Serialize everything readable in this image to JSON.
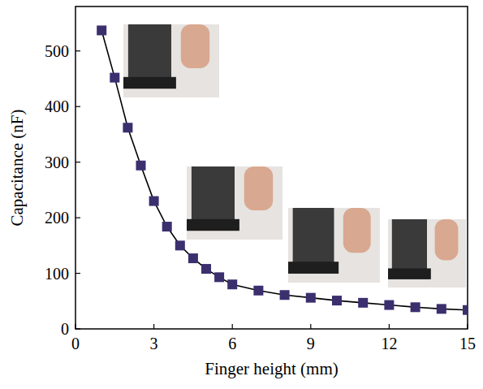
{
  "chart_data": {
    "type": "line",
    "x_label": "Finger height (mm)",
    "y_label": "Capacitance (nF)",
    "x": [
      1,
      1.5,
      2,
      2.5,
      3,
      3.5,
      4,
      4.5,
      5,
      5.5,
      6,
      7,
      8,
      9,
      10,
      11,
      12,
      13,
      14,
      15
    ],
    "series": [
      {
        "name": "Capacitance",
        "color": "#3b2f6e",
        "marker": "square",
        "line_style": "solid",
        "values": [
          537,
          452,
          362,
          294,
          230,
          184,
          150,
          127,
          108,
          93,
          80,
          69,
          61,
          56,
          51,
          47,
          43,
          39,
          36,
          34
        ]
      }
    ],
    "xlim": [
      0,
      15
    ],
    "xticks": [
      0,
      3,
      6,
      9,
      12,
      15
    ],
    "ylim": [
      0,
      580
    ],
    "yticks": [
      0,
      100,
      200,
      300,
      400,
      500
    ],
    "grid": false
  }
}
